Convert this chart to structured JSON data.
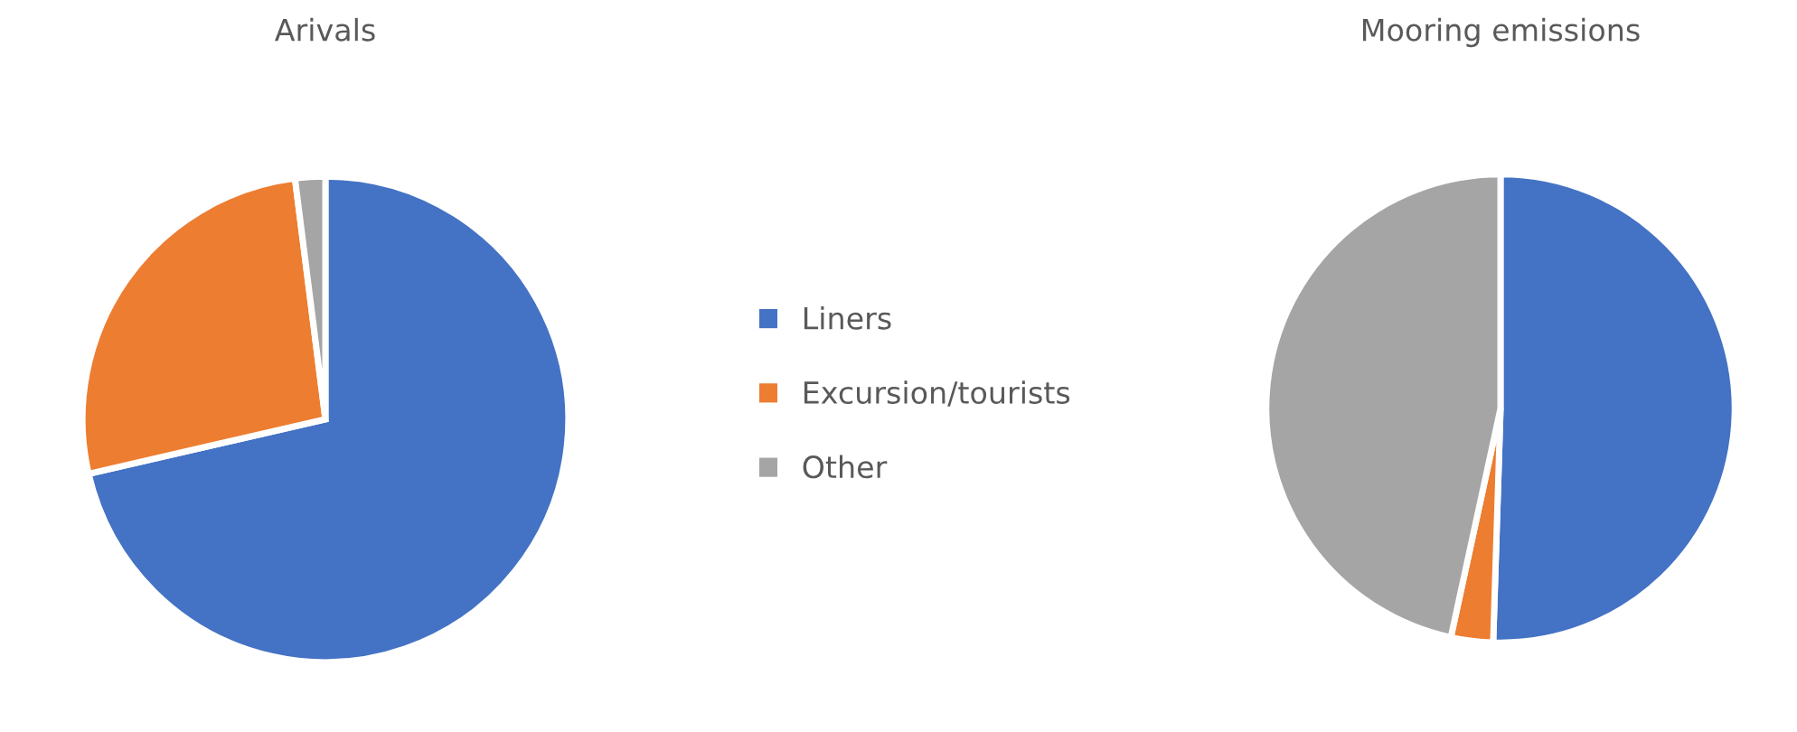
{
  "chart_data": [
    {
      "type": "pie",
      "title": "Arivals",
      "categories": [
        "Liners",
        "Excursion/tourists",
        "Other"
      ],
      "values": [
        71.4,
        26.6,
        2.0
      ],
      "colors": [
        "#4472c4",
        "#ed7d31",
        "#a5a5a5"
      ],
      "legend": "right"
    },
    {
      "type": "pie",
      "title": "Mooring emissions",
      "categories": [
        null,
        null,
        null
      ],
      "values": [
        50.5,
        2.9,
        46.6
      ],
      "colors": [
        "#4472c4",
        "#ed7d31",
        "#a5a5a5"
      ]
    }
  ]
}
